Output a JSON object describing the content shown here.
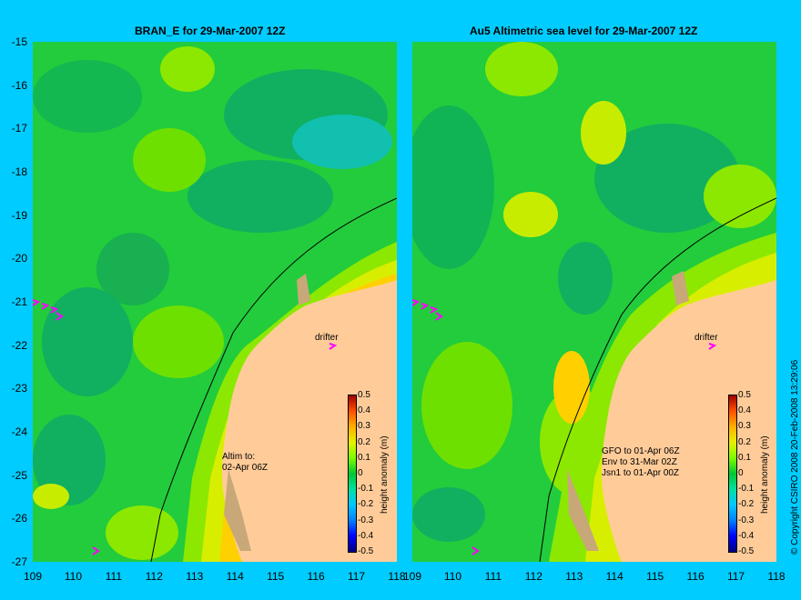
{
  "left_panel": {
    "title": "BRAN_E for 29-Mar-2007 12Z",
    "drifter_label": "drifter",
    "note": "Altim to:\n02-Apr 06Z"
  },
  "right_panel": {
    "title": "Au5 Altimetric sea level  for 29-Mar-2007 12Z",
    "drifter_label": "drifter",
    "note": "GFO to 01-Apr 06Z\nEnv to 31-Mar 02Z\nJsn1 to 01-Apr 00Z"
  },
  "y_ticks": [
    "-15",
    "-16",
    "-17",
    "-18",
    "-19",
    "-20",
    "-21",
    "-22",
    "-23",
    "-24",
    "-25",
    "-26",
    "-27"
  ],
  "x_ticks": [
    "109",
    "110",
    "111",
    "112",
    "113",
    "114",
    "115",
    "116",
    "117",
    "118"
  ],
  "colorbar": {
    "title": "height anomaly (m)",
    "labels": [
      "0.5",
      "0.4",
      "0.3",
      "0.2",
      "0.1",
      "0",
      "-0.1",
      "-0.2",
      "-0.3",
      "-0.4",
      "-0.5"
    ]
  },
  "credit": "© Copyright CSIRO 2008   20-Feb-2008 13:29:06",
  "colors": {
    "background": "#00ccff",
    "ocean": "#1ecc3c",
    "land": "#ffcc99",
    "reef": "#c8a878",
    "drifter_marker": "#ff00ff"
  }
}
